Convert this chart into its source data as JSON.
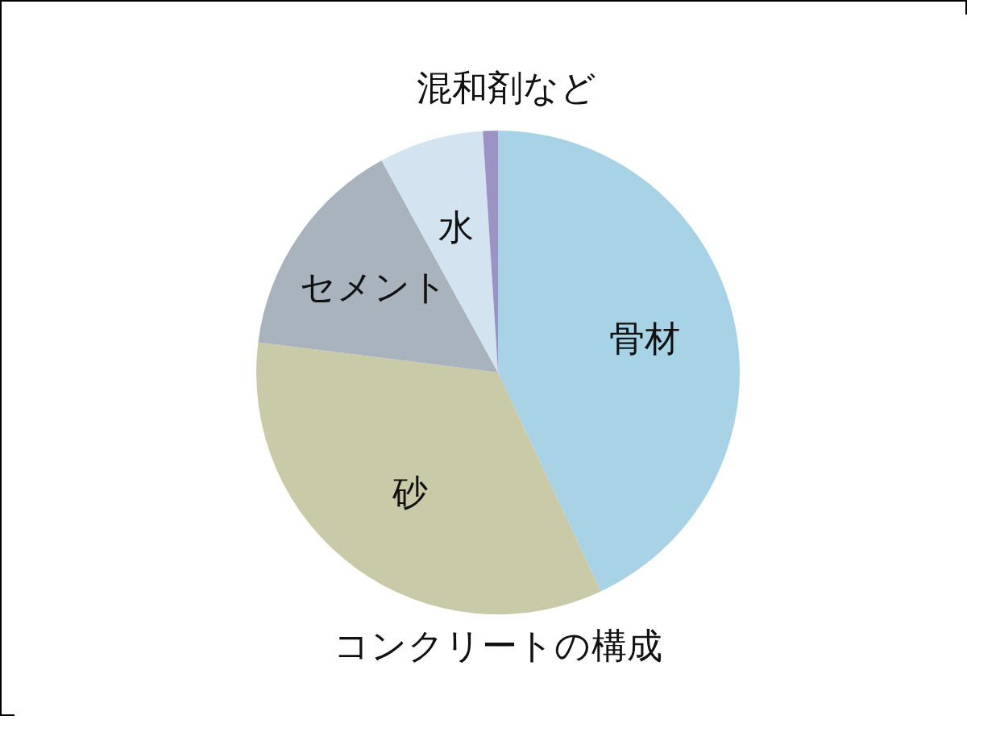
{
  "chart_data": {
    "type": "pie",
    "title": "コンクリートの構成",
    "categories": [
      "骨材",
      "砂",
      "セメント",
      "水",
      "混和剤など"
    ],
    "values": [
      43,
      34,
      15,
      7,
      1
    ],
    "colors": [
      "#a8d3e6",
      "#c9cba8",
      "#a9b3bd",
      "#d3e3ef",
      "#9b93c4"
    ]
  }
}
